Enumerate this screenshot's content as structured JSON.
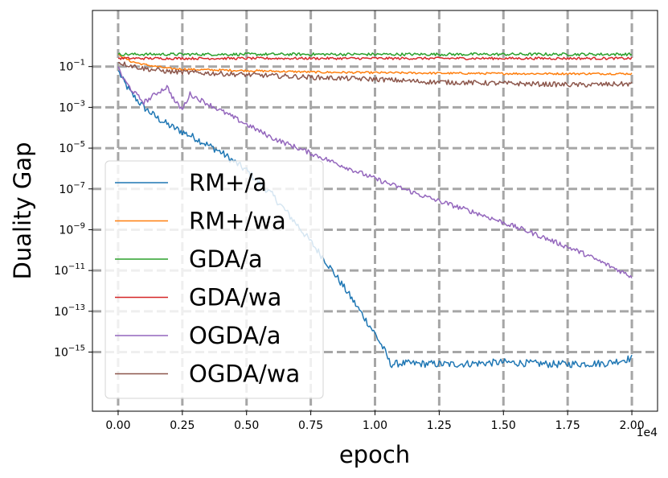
{
  "chart_data": {
    "type": "line",
    "title": "",
    "xlabel": "epoch",
    "ylabel": "Duality Gap",
    "x_multiplier_label": "1e4",
    "xscale": "linear",
    "yscale": "log",
    "xlim": [
      -0.1,
      2.1
    ],
    "ylim_log10": [
      -17.9,
      1.75
    ],
    "grid": true,
    "legend_position": "lower-left",
    "x_ticks": [
      {
        "value": 0.0,
        "label": "0.00"
      },
      {
        "value": 0.25,
        "label": "0.25"
      },
      {
        "value": 0.5,
        "label": "0.50"
      },
      {
        "value": 0.75,
        "label": "0.75"
      },
      {
        "value": 1.0,
        "label": "1.00"
      },
      {
        "value": 1.25,
        "label": "1.25"
      },
      {
        "value": 1.5,
        "label": "1.50"
      },
      {
        "value": 1.75,
        "label": "1.75"
      },
      {
        "value": 2.0,
        "label": "2.00"
      }
    ],
    "y_ticks": [
      {
        "exp": -1,
        "base": "10",
        "sup": "−1"
      },
      {
        "exp": -3,
        "base": "10",
        "sup": "−3"
      },
      {
        "exp": -5,
        "base": "10",
        "sup": "−5"
      },
      {
        "exp": -7,
        "base": "10",
        "sup": "−7"
      },
      {
        "exp": -9,
        "base": "10",
        "sup": "−9"
      },
      {
        "exp": -11,
        "base": "10",
        "sup": "−11"
      },
      {
        "exp": -13,
        "base": "10",
        "sup": "−13"
      },
      {
        "exp": -15,
        "base": "10",
        "sup": "−15"
      }
    ],
    "series": [
      {
        "name": "RM+/a",
        "color": "#1f77b4",
        "x": [
          0.0,
          0.02,
          0.05,
          0.1,
          0.15,
          0.2,
          0.3,
          0.4,
          0.5,
          0.6,
          0.7,
          0.8,
          0.9,
          1.0,
          1.04,
          1.06,
          1.1,
          1.3,
          1.5,
          1.7,
          1.9,
          2.0
        ],
        "log10_y": [
          -1.2,
          -1.7,
          -2.3,
          -3.0,
          -3.5,
          -3.9,
          -4.5,
          -5.2,
          -6.1,
          -7.3,
          -8.8,
          -10.4,
          -12.2,
          -14.1,
          -15.0,
          -15.6,
          -15.55,
          -15.6,
          -15.5,
          -15.6,
          -15.55,
          -15.3
        ],
        "noise": 0.18
      },
      {
        "name": "RM+/wa",
        "color": "#ff7f0e",
        "x": [
          0.0,
          0.05,
          0.1,
          0.2,
          0.3,
          0.5,
          0.8,
          1.0,
          1.3,
          1.6,
          2.0
        ],
        "log10_y": [
          -0.4,
          -0.75,
          -0.9,
          -1.1,
          -1.15,
          -1.2,
          -1.28,
          -1.3,
          -1.33,
          -1.35,
          -1.35
        ],
        "noise": 0.05
      },
      {
        "name": "GDA/a",
        "color": "#2ca02c",
        "x": [
          0.0,
          2.0
        ],
        "log10_y": [
          -0.4,
          -0.4
        ],
        "noise": 0.07
      },
      {
        "name": "GDA/wa",
        "color": "#d62728",
        "x": [
          0.0,
          2.0
        ],
        "log10_y": [
          -0.6,
          -0.6
        ],
        "noise": 0.06
      },
      {
        "name": "OGDA/a",
        "color": "#9467bd",
        "x": [
          0.0,
          0.02,
          0.05,
          0.08,
          0.1,
          0.12,
          0.15,
          0.19,
          0.2,
          0.22,
          0.25,
          0.28,
          0.3,
          0.45,
          0.6,
          0.8,
          1.0,
          1.2,
          1.4,
          1.6,
          1.8,
          2.0
        ],
        "log10_y": [
          -1.0,
          -1.6,
          -2.1,
          -2.5,
          -2.75,
          -2.6,
          -2.3,
          -2.0,
          -2.2,
          -2.7,
          -3.1,
          -2.35,
          -2.5,
          -3.5,
          -4.5,
          -5.5,
          -6.5,
          -7.4,
          -8.2,
          -9.1,
          -10.1,
          -11.3
        ],
        "noise": 0.12
      },
      {
        "name": "OGDA/wa",
        "color": "#8c564b",
        "x": [
          0.0,
          0.05,
          0.1,
          0.2,
          0.4,
          0.6,
          0.8,
          1.0,
          1.2,
          1.4,
          1.6,
          1.8,
          2.0
        ],
        "log10_y": [
          -0.8,
          -0.95,
          -1.1,
          -1.25,
          -1.35,
          -1.45,
          -1.55,
          -1.62,
          -1.75,
          -1.8,
          -1.85,
          -1.9,
          -1.85
        ],
        "noise": 0.12
      }
    ]
  }
}
